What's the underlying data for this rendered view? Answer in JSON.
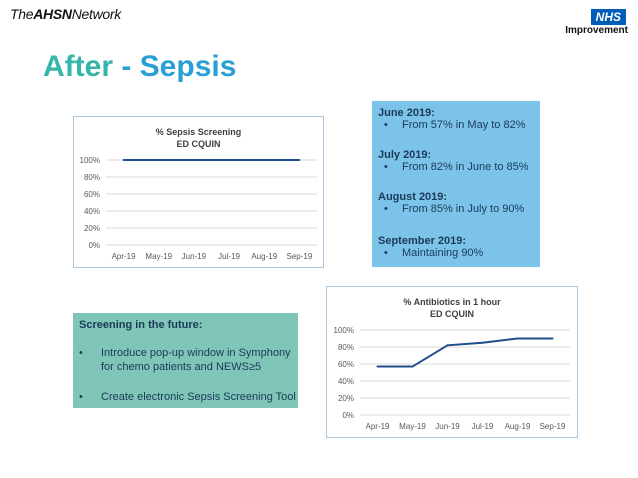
{
  "header": {
    "brand_the": "The",
    "brand_ahsn": "AHSN",
    "brand_network": "Network",
    "nhs_logo": "NHS",
    "nhs_sub": "Improvement"
  },
  "title": {
    "after": "After",
    "rest": " - Sepsis"
  },
  "info_box": {
    "sections": [
      {
        "heading": "June 2019:",
        "bullet": "From 57% in May to 82%"
      },
      {
        "heading": "July 2019:",
        "bullet": "From 82% in June to 85%"
      },
      {
        "heading": "August 2019:",
        "bullet": "From 85% in July to 90%"
      },
      {
        "heading": "September 2019:",
        "bullet": "Maintaining 90%"
      }
    ],
    "bullet_symbol": "•"
  },
  "future_box": {
    "heading": "Screening in the future:",
    "items": [
      "Introduce pop-up window in Symphony for chemo patients and NEWS≥5",
      "Create electronic Sepsis Screening Tool"
    ],
    "bullet_symbol": "•"
  },
  "chart_data": [
    {
      "type": "line",
      "title": "% Sepsis Screening",
      "subtitle": "ED CQUIN",
      "categories": [
        "Apr-19",
        "May-19",
        "Jun-19",
        "Jul-19",
        "Aug-19",
        "Sep-19"
      ],
      "values": [
        100,
        100,
        100,
        100,
        100,
        100
      ],
      "yticks": [
        "0%",
        "20%",
        "40%",
        "60%",
        "80%",
        "100%"
      ],
      "ylim": [
        0,
        100
      ],
      "grid": true,
      "color": "#1f4e8c"
    },
    {
      "type": "line",
      "title": "% Antibiotics in 1 hour",
      "subtitle": "ED CQUIN",
      "categories": [
        "Apr-19",
        "May-19",
        "Jun-19",
        "Jul-19",
        "Aug-19",
        "Sep-19"
      ],
      "values": [
        57,
        57,
        82,
        85,
        90,
        90
      ],
      "yticks": [
        "0%",
        "20%",
        "40%",
        "60%",
        "80%",
        "100%"
      ],
      "ylim": [
        0,
        100
      ],
      "grid": true,
      "color": "#1f4e8c"
    }
  ]
}
